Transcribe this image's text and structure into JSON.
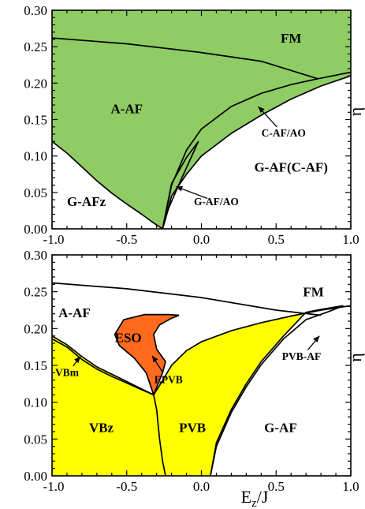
{
  "colors": {
    "green": "#8fcc63",
    "yellow": "#ffff00",
    "orange": "#ff6a1f",
    "line": "#000000",
    "background": "#ffffff"
  },
  "chart_data": [
    {
      "id": "top",
      "type": "area",
      "xlim": [
        -1.0,
        1.0
      ],
      "ylim": [
        0.0,
        0.3
      ],
      "xlabel": "",
      "ylabel": "η",
      "xticks": [
        -1.0,
        -0.5,
        0.0,
        0.5,
        1.0
      ],
      "xtick_labels": [
        "-1.0",
        "-0.5",
        "0.0",
        "0.5",
        "1.0"
      ],
      "yticks": [
        0.0,
        0.05,
        0.1,
        0.15,
        0.2,
        0.25,
        0.3
      ],
      "ytick_labels": [
        "0.00",
        "0.05",
        "0.10",
        "0.15",
        "0.20",
        "0.25",
        "0.30"
      ],
      "regions": [
        {
          "label": "FM",
          "x": 0.6,
          "y": 0.262
        },
        {
          "label": "A-AF",
          "x": -0.5,
          "y": 0.165
        },
        {
          "label": "G-AF(C-AF)",
          "x": 0.6,
          "y": 0.085
        },
        {
          "label": "G-AFz",
          "x": -0.77,
          "y": 0.038
        }
      ],
      "annotations": [
        {
          "label": "C-AF/AO",
          "text_x": 0.55,
          "text_y": 0.132,
          "arrow_x": 0.38,
          "arrow_y": 0.168
        },
        {
          "label": "G-AF/AO",
          "text_x": 0.1,
          "text_y": 0.038,
          "arrow_x": -0.17,
          "arrow_y": 0.058
        }
      ],
      "shaded_region": {
        "fill": "green",
        "boundary": [
          [
            -1.0,
            0.12
          ],
          [
            -0.9,
            0.104
          ],
          [
            -0.8,
            0.085
          ],
          [
            -0.7,
            0.066
          ],
          [
            -0.6,
            0.049
          ],
          [
            -0.5,
            0.034
          ],
          [
            -0.4,
            0.02
          ],
          [
            -0.32,
            0.008
          ],
          [
            -0.26,
            0.0
          ],
          [
            -0.2,
            0.045
          ],
          [
            -0.1,
            0.075
          ],
          [
            0.0,
            0.1
          ],
          [
            0.2,
            0.131
          ],
          [
            0.4,
            0.156
          ],
          [
            0.6,
            0.178
          ],
          [
            0.8,
            0.196
          ],
          [
            1.0,
            0.21
          ],
          [
            1.0,
            0.3
          ],
          [
            -1.0,
            0.3
          ]
        ]
      },
      "series": [
        {
          "points": [
            [
              -1.0,
              0.262
            ],
            [
              -0.5,
              0.254
            ],
            [
              0.0,
              0.242
            ],
            [
              0.4,
              0.23
            ],
            [
              0.78,
              0.206
            ]
          ]
        },
        {
          "points": [
            [
              -0.26,
              0.0
            ],
            [
              -0.2,
              0.06
            ],
            [
              -0.1,
              0.108
            ],
            [
              0.0,
              0.137
            ],
            [
              0.2,
              0.168
            ],
            [
              0.4,
              0.186
            ],
            [
              0.6,
              0.198
            ],
            [
              0.78,
              0.206
            ],
            [
              1.0,
              0.215
            ]
          ]
        },
        {
          "points": [
            [
              -0.26,
              0.0
            ],
            [
              -0.2,
              0.045
            ],
            [
              -0.1,
              0.075
            ],
            [
              0.0,
              0.1
            ],
            [
              0.2,
              0.131
            ],
            [
              0.4,
              0.156
            ],
            [
              0.6,
              0.178
            ],
            [
              0.8,
              0.196
            ],
            [
              1.0,
              0.21
            ]
          ]
        },
        {
          "points": [
            [
              -1.0,
              0.12
            ],
            [
              -0.9,
              0.104
            ],
            [
              -0.8,
              0.085
            ],
            [
              -0.7,
              0.066
            ],
            [
              -0.6,
              0.049
            ],
            [
              -0.5,
              0.034
            ],
            [
              -0.4,
              0.02
            ],
            [
              -0.32,
              0.008
            ],
            [
              -0.26,
              0.0
            ]
          ]
        },
        {
          "points": [
            [
              -0.26,
              0.0
            ],
            [
              -0.2,
              0.062
            ],
            [
              -0.1,
              0.098
            ],
            [
              -0.02,
              0.12
            ]
          ]
        },
        {
          "points": [
            [
              -0.26,
              0.0
            ],
            [
              -0.22,
              0.028
            ],
            [
              -0.14,
              0.066
            ],
            [
              -0.02,
              0.12
            ]
          ]
        }
      ]
    },
    {
      "id": "bottom",
      "type": "area",
      "xlim": [
        -1.0,
        1.0
      ],
      "ylim": [
        0.0,
        0.3
      ],
      "xlabel": "E_z/J",
      "ylabel": "η",
      "xticks": [
        -1.0,
        -0.5,
        0.0,
        0.5,
        1.0
      ],
      "xtick_labels": [
        "-1.0",
        "-0.5",
        "0.0",
        "0.5",
        "1.0"
      ],
      "yticks": [
        0.0,
        0.05,
        0.1,
        0.15,
        0.2,
        0.25,
        0.3
      ],
      "ytick_labels": [
        "0.00",
        "0.05",
        "0.10",
        "0.15",
        "0.20",
        "0.25",
        "0.30"
      ],
      "regions": [
        {
          "label": "FM",
          "x": 0.75,
          "y": 0.25
        },
        {
          "label": "A-AF",
          "x": -0.85,
          "y": 0.222
        },
        {
          "label": "ESO",
          "x": -0.49,
          "y": 0.188
        },
        {
          "label": "VBz",
          "x": -0.67,
          "y": 0.066
        },
        {
          "label": "PVB",
          "x": -0.06,
          "y": 0.066
        },
        {
          "label": "G-AF",
          "x": 0.53,
          "y": 0.066
        }
      ],
      "annotations": [
        {
          "label": "VBm",
          "text_x": -0.9,
          "text_y": 0.141,
          "arrow_x": -0.81,
          "arrow_y": 0.162
        },
        {
          "label": "EPVB",
          "text_x": -0.22,
          "text_y": 0.131,
          "arrow_x": -0.33,
          "arrow_y": 0.163
        },
        {
          "label": "PVB-AF",
          "text_x": 0.67,
          "text_y": 0.163,
          "arrow_x": 0.79,
          "arrow_y": 0.19
        }
      ],
      "yellow_regions": [
        [
          [
            -1.0,
            0.19
          ],
          [
            -0.9,
            0.178
          ],
          [
            -0.8,
            0.162
          ],
          [
            -0.7,
            0.148
          ],
          [
            -0.6,
            0.138
          ],
          [
            -0.5,
            0.128
          ],
          [
            -0.4,
            0.118
          ],
          [
            -0.32,
            0.11
          ],
          [
            -0.3,
            0.09
          ],
          [
            -0.28,
            0.05
          ],
          [
            -0.26,
            0.02
          ],
          [
            -0.24,
            0.0
          ],
          [
            -1.0,
            0.0
          ]
        ],
        [
          [
            -0.32,
            0.11
          ],
          [
            -0.27,
            0.126
          ],
          [
            -0.2,
            0.15
          ],
          [
            -0.1,
            0.17
          ],
          [
            0.0,
            0.182
          ],
          [
            0.2,
            0.197
          ],
          [
            0.4,
            0.208
          ],
          [
            0.6,
            0.217
          ],
          [
            0.7,
            0.222
          ],
          [
            0.55,
            0.19
          ],
          [
            0.4,
            0.155
          ],
          [
            0.3,
            0.125
          ],
          [
            0.2,
            0.09
          ],
          [
            0.1,
            0.045
          ],
          [
            0.06,
            0.0
          ],
          [
            -0.24,
            0.0
          ],
          [
            -0.26,
            0.02
          ],
          [
            -0.28,
            0.05
          ],
          [
            -0.3,
            0.09
          ]
        ]
      ],
      "orange_region": [
        [
          -0.32,
          0.11
        ],
        [
          -0.37,
          0.14
        ],
        [
          -0.45,
          0.16
        ],
        [
          -0.55,
          0.177
        ],
        [
          -0.58,
          0.192
        ],
        [
          -0.52,
          0.212
        ],
        [
          -0.38,
          0.219
        ],
        [
          -0.22,
          0.219
        ],
        [
          -0.15,
          0.218
        ],
        [
          -0.2,
          0.214
        ],
        [
          -0.28,
          0.205
        ],
        [
          -0.32,
          0.192
        ],
        [
          -0.3,
          0.172
        ],
        [
          -0.24,
          0.155
        ],
        [
          -0.26,
          0.14
        ]
      ],
      "series": [
        {
          "points": [
            [
              -1.0,
              0.262
            ],
            [
              -0.5,
              0.254
            ],
            [
              0.0,
              0.242
            ],
            [
              0.5,
              0.225
            ],
            [
              0.8,
              0.218
            ]
          ]
        },
        {
          "points": [
            [
              -1.0,
              0.19
            ],
            [
              -0.9,
              0.178
            ],
            [
              -0.8,
              0.162
            ],
            [
              -0.7,
              0.148
            ],
            [
              -0.6,
              0.138
            ],
            [
              -0.5,
              0.128
            ],
            [
              -0.4,
              0.118
            ],
            [
              -0.32,
              0.11
            ]
          ]
        },
        {
          "points": [
            [
              -1.0,
              0.186
            ],
            [
              -0.9,
              0.175
            ],
            [
              -0.8,
              0.158
            ],
            [
              -0.7,
              0.145
            ],
            [
              -0.6,
              0.135
            ],
            [
              -0.5,
              0.126
            ],
            [
              -0.4,
              0.117
            ],
            [
              -0.32,
              0.11
            ]
          ]
        },
        {
          "points": [
            [
              -0.32,
              0.11
            ],
            [
              -0.37,
              0.14
            ],
            [
              -0.45,
              0.16
            ],
            [
              -0.55,
              0.177
            ],
            [
              -0.58,
              0.192
            ],
            [
              -0.52,
              0.212
            ],
            [
              -0.38,
              0.219
            ],
            [
              -0.22,
              0.219
            ],
            [
              -0.15,
              0.218
            ]
          ]
        },
        {
          "points": [
            [
              -0.32,
              0.11
            ],
            [
              -0.26,
              0.14
            ],
            [
              -0.24,
              0.155
            ],
            [
              -0.3,
              0.172
            ],
            [
              -0.32,
              0.192
            ],
            [
              -0.28,
              0.205
            ],
            [
              -0.2,
              0.214
            ],
            [
              -0.15,
              0.218
            ]
          ]
        },
        {
          "points": [
            [
              -0.32,
              0.11
            ],
            [
              -0.27,
              0.126
            ],
            [
              -0.2,
              0.15
            ],
            [
              -0.1,
              0.17
            ],
            [
              0.0,
              0.182
            ],
            [
              0.2,
              0.197
            ],
            [
              0.4,
              0.208
            ],
            [
              0.6,
              0.217
            ],
            [
              0.8,
              0.225
            ],
            [
              1.0,
              0.231
            ]
          ]
        },
        {
          "points": [
            [
              -0.32,
              0.11
            ],
            [
              -0.3,
              0.09
            ],
            [
              -0.28,
              0.05
            ],
            [
              -0.26,
              0.02
            ],
            [
              -0.24,
              0.0
            ]
          ]
        },
        {
          "points": [
            [
              0.06,
              0.0
            ],
            [
              0.1,
              0.045
            ],
            [
              0.2,
              0.09
            ],
            [
              0.3,
              0.125
            ],
            [
              0.4,
              0.155
            ],
            [
              0.55,
              0.19
            ],
            [
              0.7,
              0.222
            ],
            [
              0.8,
              0.226
            ],
            [
              0.95,
              0.231
            ]
          ]
        },
        {
          "points": [
            [
              0.06,
              0.0
            ],
            [
              0.1,
              0.04
            ],
            [
              0.2,
              0.086
            ],
            [
              0.3,
              0.121
            ],
            [
              0.4,
              0.151
            ],
            [
              0.55,
              0.186
            ],
            [
              0.7,
              0.212
            ],
            [
              0.85,
              0.223
            ],
            [
              0.95,
              0.231
            ]
          ]
        }
      ]
    }
  ]
}
